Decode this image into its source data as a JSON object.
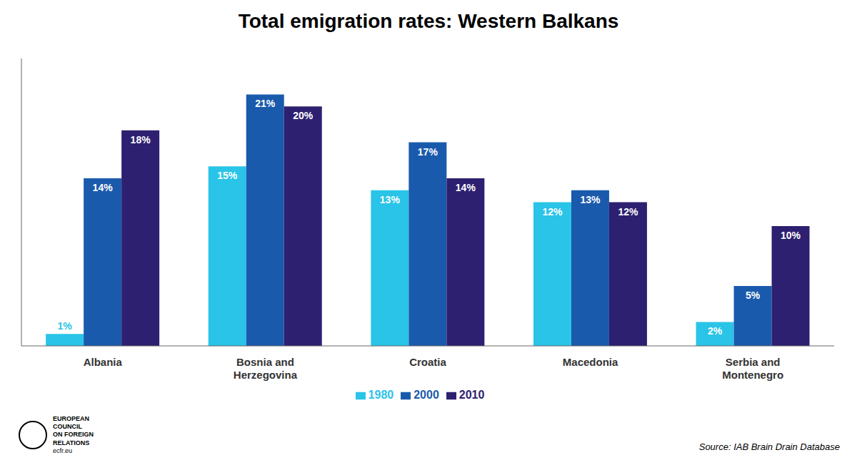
{
  "chart_data": {
    "type": "bar",
    "title": "Total emigration rates: Western Balkans",
    "categories": [
      "Albania",
      "Bosnia and\nHerzegovina",
      "Croatia",
      "Macedonia",
      "Serbia and\nMontenegro"
    ],
    "series": [
      {
        "name": "1980",
        "color": "#29C4E8",
        "values": [
          1,
          15,
          13,
          12,
          2
        ],
        "value_labels": [
          "1%",
          "15%",
          "13%",
          "12%",
          "2%"
        ]
      },
      {
        "name": "2000",
        "color": "#1A5AAD",
        "values": [
          14,
          21,
          17,
          13,
          5
        ],
        "value_labels": [
          "14%",
          "21%",
          "17%",
          "13%",
          "5%"
        ]
      },
      {
        "name": "2010",
        "color": "#2D2070",
        "values": [
          18,
          20,
          14,
          12,
          10
        ],
        "value_labels": [
          "18%",
          "20%",
          "14%",
          "12%",
          "10%"
        ]
      }
    ],
    "ylim": [
      0,
      24
    ],
    "grid": false,
    "tick_labels": false,
    "data_labels": true,
    "annotations": [
      "Source: IAB Brain Drain Database",
      "EUROPEAN\nCOUNCIL\nON FOREIGN\nRELATIONS",
      "ecfr.eu"
    ]
  }
}
